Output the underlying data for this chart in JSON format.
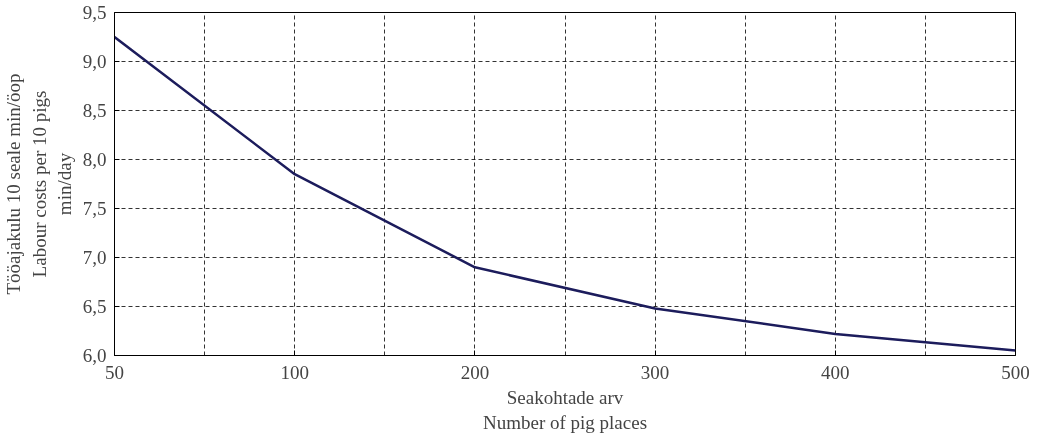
{
  "chart_data": {
    "type": "line",
    "categories": [
      "50",
      "100",
      "200",
      "300",
      "400",
      "500"
    ],
    "series": [
      {
        "color": "#1c1c5c",
        "values": [
          9.25,
          7.85,
          6.9,
          6.48,
          6.22,
          6.05
        ]
      }
    ],
    "xlabel": "Seakohtade arv\nNumber of pig places",
    "ylabel": "Tööajakulu 10 seale min/öop\nLabour costs per 10 pigs\nmin/day",
    "ylim": [
      6.0,
      9.5
    ],
    "yticks": [
      {
        "value": 6.0,
        "label": "6,0"
      },
      {
        "value": 6.5,
        "label": "6,5"
      },
      {
        "value": 7.0,
        "label": "7,0"
      },
      {
        "value": 7.5,
        "label": "7,5"
      },
      {
        "value": 8.0,
        "label": "8,0"
      },
      {
        "value": 8.5,
        "label": "8,5"
      },
      {
        "value": 9.0,
        "label": "9,0"
      },
      {
        "value": 9.5,
        "label": "9,5"
      }
    ],
    "grid": true,
    "marker": "none",
    "line_style": "solid"
  }
}
